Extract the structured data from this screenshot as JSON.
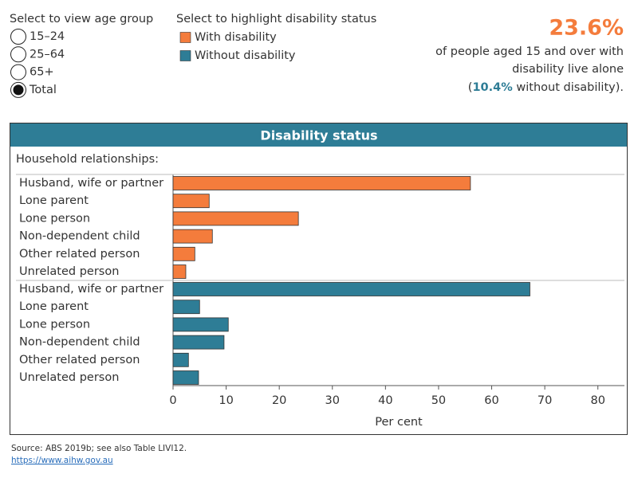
{
  "controls": {
    "age_group": {
      "label": "Select to view age group",
      "options": [
        "15–24",
        "25–64",
        "65+",
        "Total"
      ],
      "selected": "Total"
    },
    "highlight": {
      "label": "Select to highlight disability status"
    }
  },
  "summary": {
    "headline": "23.6%",
    "line1": "of people aged 15 and over with",
    "line2": "disability live alone",
    "open": "(",
    "highlight": "10.4%",
    "close": " without disability)."
  },
  "chart_data": {
    "type": "bar",
    "orientation": "horizontal",
    "title": "Disability status",
    "subtitle": "Household relationships:",
    "categories": [
      "Husband, wife or partner",
      "Lone parent",
      "Lone person",
      "Non-dependent child",
      "Other related person",
      "Unrelated person"
    ],
    "series": [
      {
        "name": "With disability",
        "color": "#f47c3c",
        "values": [
          56,
          6.8,
          23.6,
          7.4,
          4.1,
          2.4
        ]
      },
      {
        "name": "Without disability",
        "color": "#2e7d96",
        "values": [
          67.2,
          5.0,
          10.4,
          9.6,
          2.9,
          4.8
        ]
      }
    ],
    "xlim": [
      0,
      85
    ],
    "xticks": [
      0,
      10,
      20,
      30,
      40,
      50,
      60,
      70,
      80
    ],
    "xlabel": "Per cent"
  },
  "footer": {
    "source": "Source: ABS 2019b; see also Table LIVI12.",
    "link": "https://www.aihw.gov.au"
  }
}
